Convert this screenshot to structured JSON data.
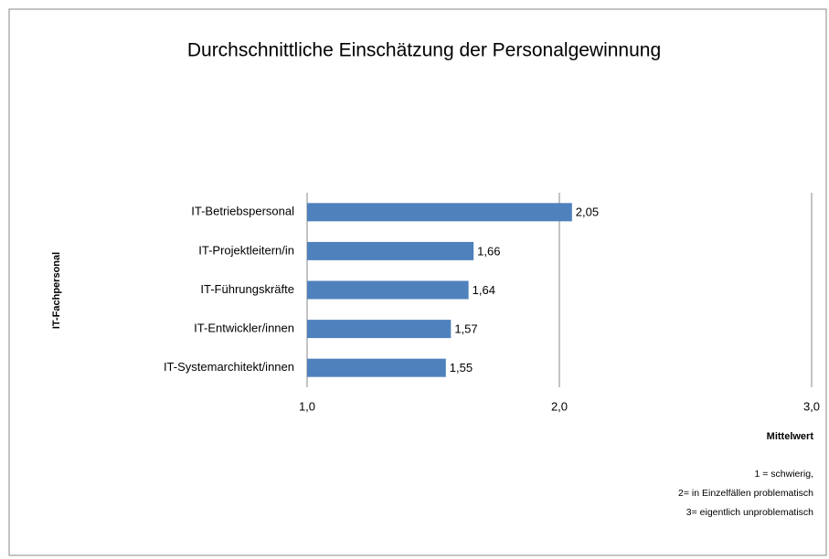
{
  "chart_data": {
    "type": "bar",
    "orientation": "horizontal",
    "title": "Durchschnittliche Einschätzung der Personalgewinnung",
    "categories": [
      "IT-Betriebspersonal",
      "IT-Projektleitern/in",
      "IT-Führungskräfte",
      "IT-Entwickler/innen",
      "IT-Systemarchitekt/innen"
    ],
    "values": [
      2.05,
      1.66,
      1.64,
      1.57,
      1.55
    ],
    "value_labels": [
      "2,05",
      "1,66",
      "1,64",
      "1,57",
      "1,55"
    ],
    "color": "#4f81bd",
    "xlim": [
      1,
      3
    ],
    "xticks": [
      {
        "value": 1,
        "label": "1,0"
      },
      {
        "value": 2,
        "label": "2,0"
      },
      {
        "value": 3,
        "label": "3,0"
      }
    ],
    "grid": true,
    "xlabel": "Mittelwert",
    "ylabel": "IT-Fachpersonal",
    "annotations": [
      "1 = schwierig,",
      "2= in Einzelfällen problematisch",
      "3= eigentlich unproblematisch"
    ]
  }
}
